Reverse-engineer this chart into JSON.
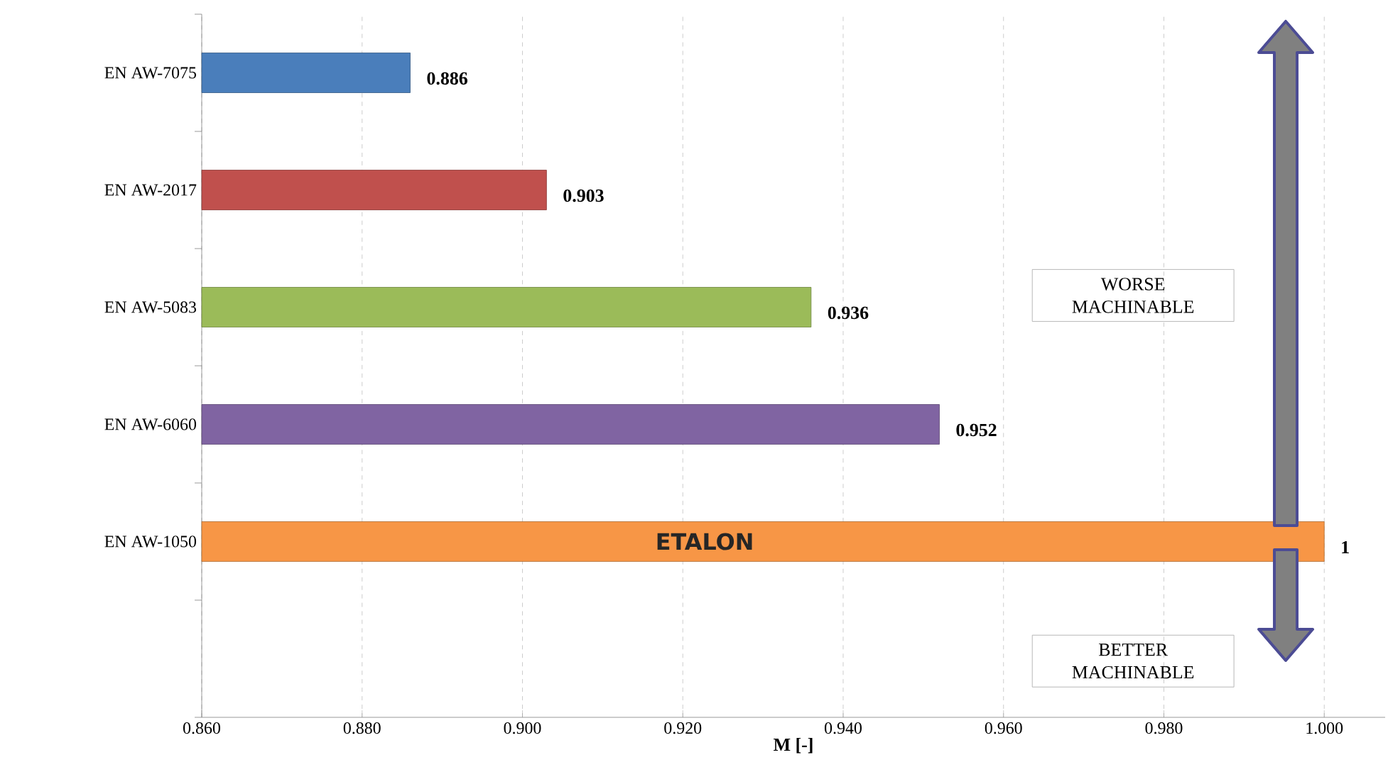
{
  "chart_data": {
    "type": "bar",
    "orientation": "horizontal",
    "xlabel": "**M [-]**",
    "categories": [
      "EN AW-7075",
      "EN AW-2017",
      "EN AW-5083",
      "EN AW-6060",
      "EN AW-1050",
      null
    ],
    "values": [
      0.886,
      0.903,
      0.936,
      0.952,
      1,
      null
    ],
    "colors": [
      "#4a7ebb",
      "#c0504d",
      "#9bbb59",
      "#8064a2",
      "#f79646",
      null
    ],
    "value_labels": [
      "0.886",
      "0.903",
      "0.936",
      "0.952",
      "1",
      null
    ],
    "xlim": [
      0.86,
      1.0076
    ],
    "xticks": [
      {
        "value": 0.86,
        "label": "0.860"
      },
      {
        "value": 0.88,
        "label": "0.880"
      },
      {
        "value": 0.9,
        "label": "0.900"
      },
      {
        "value": 0.92,
        "label": "0.920"
      },
      {
        "value": 0.94,
        "label": "0.940"
      },
      {
        "value": 0.96,
        "label": "0.960"
      },
      {
        "value": 0.98,
        "label": "0.980"
      },
      {
        "value": 1.0,
        "label": "1.000"
      }
    ],
    "grid": "x",
    "annotations": [
      "ETALON",
      "WORSE MACHINABLE",
      "BETTER MACHINABLE"
    ]
  }
}
